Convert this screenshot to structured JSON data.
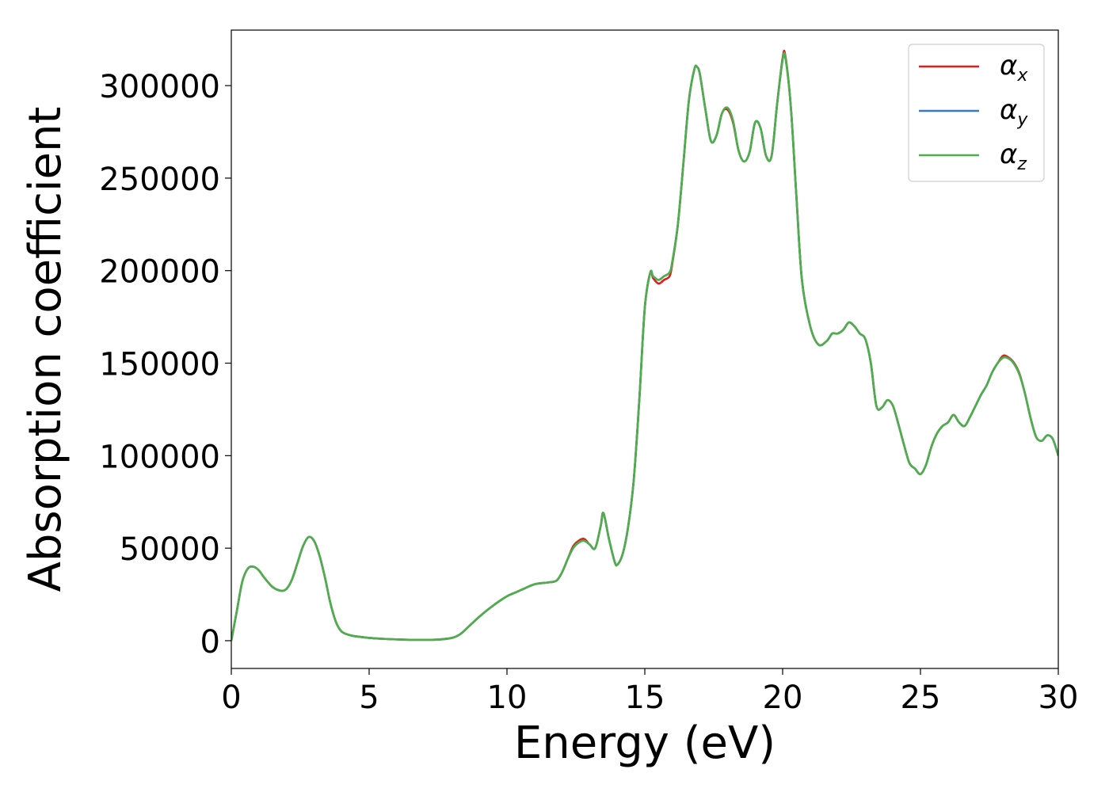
{
  "chart_data": {
    "type": "line",
    "title": "",
    "xlabel": "Energy (eV)",
    "ylabel": "Absorption coefficient",
    "xlim": [
      0,
      30
    ],
    "ylim": [
      -15000,
      330000
    ],
    "xticks": [
      0,
      5,
      10,
      15,
      20,
      25,
      30
    ],
    "yticks": [
      0,
      50000,
      100000,
      150000,
      200000,
      250000,
      300000
    ],
    "grid": false,
    "legend_position": "top-right",
    "legend": [
      {
        "symbol": "α",
        "subscript": "x",
        "color": "#e41a1c"
      },
      {
        "symbol": "α",
        "subscript": "y",
        "color": "#377eb8"
      },
      {
        "symbol": "α",
        "subscript": "z",
        "color": "#4daf4a"
      }
    ],
    "x": [
      0,
      0.2,
      0.4,
      0.6,
      0.8,
      1.0,
      1.2,
      1.5,
      1.8,
      2.0,
      2.2,
      2.4,
      2.6,
      2.8,
      3.0,
      3.2,
      3.4,
      3.6,
      3.8,
      4.0,
      4.3,
      4.6,
      5.0,
      5.5,
      6.0,
      6.5,
      7.0,
      7.5,
      8.0,
      8.3,
      8.6,
      9.0,
      9.5,
      10.0,
      10.3,
      10.6,
      11.0,
      11.5,
      11.8,
      12.0,
      12.2,
      12.4,
      12.6,
      12.8,
      13.0,
      13.2,
      13.4,
      13.5,
      13.7,
      13.9,
      14.0,
      14.2,
      14.4,
      14.6,
      14.8,
      15.0,
      15.2,
      15.3,
      15.5,
      15.7,
      15.9,
      16.0,
      16.2,
      16.4,
      16.6,
      16.8,
      16.9,
      17.0,
      17.2,
      17.4,
      17.6,
      17.8,
      18.0,
      18.2,
      18.4,
      18.6,
      18.8,
      19.0,
      19.2,
      19.4,
      19.6,
      19.8,
      20.0,
      20.1,
      20.3,
      20.5,
      20.7,
      21.0,
      21.3,
      21.6,
      21.8,
      22.0,
      22.2,
      22.4,
      22.6,
      22.8,
      23.0,
      23.2,
      23.4,
      23.6,
      23.8,
      24.0,
      24.2,
      24.4,
      24.6,
      24.8,
      25.0,
      25.2,
      25.4,
      25.6,
      25.8,
      26.0,
      26.2,
      26.4,
      26.6,
      26.8,
      27.0,
      27.2,
      27.4,
      27.6,
      27.8,
      28.0,
      28.2,
      28.4,
      28.6,
      28.8,
      29.0,
      29.2,
      29.4,
      29.6,
      29.8,
      30.0
    ],
    "series": [
      {
        "name": "α_x",
        "color": "#e41a1c",
        "values": [
          0,
          16000,
          32000,
          39000,
          40000,
          38000,
          34000,
          29000,
          27000,
          28000,
          33000,
          42000,
          51000,
          56000,
          54000,
          46000,
          34000,
          20000,
          10000,
          5000,
          3000,
          2200,
          1500,
          1000,
          700,
          500,
          500,
          600,
          1500,
          3500,
          7500,
          13000,
          19000,
          24000,
          26000,
          28000,
          30500,
          31500,
          32500,
          37000,
          44000,
          51000,
          54000,
          55000,
          52000,
          50000,
          62000,
          69000,
          55000,
          43000,
          41000,
          47000,
          62000,
          87000,
          130000,
          180000,
          199000,
          196000,
          193000,
          195000,
          197000,
          204000,
          225000,
          258000,
          292000,
          309000,
          310000,
          306000,
          287000,
          270000,
          273000,
          285000,
          287000,
          280000,
          265000,
          259000,
          264000,
          280000,
          277000,
          262000,
          262000,
          290000,
          315000,
          316000,
          288000,
          240000,
          195000,
          170000,
          160000,
          162000,
          166000,
          166000,
          168000,
          172000,
          170000,
          166000,
          163000,
          150000,
          127000,
          126000,
          130000,
          127000,
          117000,
          106000,
          96000,
          93000,
          90000,
          95000,
          105000,
          112000,
          116000,
          118000,
          122000,
          118000,
          116000,
          121000,
          127000,
          133000,
          138000,
          145000,
          150000,
          154000,
          153000,
          150000,
          144000,
          133000,
          120000,
          110000,
          108000,
          111000,
          109000,
          100000
        ]
      },
      {
        "name": "α_y",
        "color": "#377eb8",
        "values": [
          0,
          16000,
          32000,
          39000,
          40000,
          38000,
          34000,
          29000,
          27000,
          28000,
          33000,
          42000,
          51000,
          56000,
          54000,
          46000,
          34000,
          20000,
          10000,
          5000,
          3000,
          2200,
          1500,
          1000,
          700,
          500,
          500,
          600,
          1500,
          3500,
          7500,
          13000,
          19000,
          24000,
          26000,
          28000,
          30500,
          31500,
          32500,
          37000,
          44000,
          50000,
          53000,
          54000,
          52000,
          50000,
          62000,
          69000,
          55000,
          43000,
          41000,
          47000,
          62000,
          87000,
          130000,
          180000,
          199000,
          197000,
          195000,
          197000,
          199000,
          205000,
          225000,
          258000,
          292000,
          309000,
          310000,
          306000,
          287000,
          270000,
          273000,
          285000,
          288000,
          281000,
          265000,
          259000,
          264000,
          280000,
          277000,
          262000,
          262000,
          290000,
          314000,
          315000,
          288000,
          240000,
          195000,
          170000,
          160000,
          162000,
          166000,
          166000,
          168000,
          172000,
          170000,
          166000,
          163000,
          150000,
          127000,
          126000,
          130000,
          127000,
          117000,
          106000,
          96000,
          93000,
          90000,
          95000,
          105000,
          112000,
          116000,
          118000,
          122000,
          118000,
          116000,
          121000,
          127000,
          133000,
          138000,
          145000,
          150000,
          153000,
          152500,
          149500,
          143500,
          133000,
          120000,
          110000,
          108000,
          111000,
          109000,
          100000
        ]
      },
      {
        "name": "α_z",
        "color": "#4daf4a",
        "values": [
          0,
          16000,
          32000,
          39000,
          40000,
          38000,
          34000,
          29000,
          27000,
          28000,
          33000,
          42000,
          51000,
          56000,
          54000,
          46000,
          34000,
          20000,
          10000,
          5000,
          3000,
          2200,
          1500,
          1000,
          700,
          500,
          500,
          600,
          1500,
          3500,
          7500,
          13000,
          19000,
          24000,
          26000,
          28000,
          30500,
          31500,
          32500,
          37000,
          44000,
          50000,
          53000,
          54000,
          52000,
          50000,
          62000,
          69000,
          55000,
          43000,
          41000,
          47000,
          62000,
          87000,
          130000,
          180000,
          199000,
          197000,
          195000,
          197000,
          199000,
          205000,
          225000,
          258000,
          292000,
          309000,
          310000,
          306000,
          287000,
          270000,
          273000,
          285000,
          288000,
          281000,
          265000,
          259000,
          264000,
          280000,
          277000,
          262000,
          262000,
          290000,
          314000,
          315000,
          288000,
          240000,
          195000,
          170000,
          160000,
          162000,
          166000,
          166000,
          168000,
          172000,
          170000,
          166000,
          163000,
          150000,
          127000,
          126000,
          130000,
          127000,
          117000,
          106000,
          96000,
          93000,
          90000,
          95000,
          105000,
          112000,
          116000,
          118000,
          122000,
          118000,
          116000,
          121000,
          127000,
          133000,
          138000,
          145000,
          150000,
          153000,
          152500,
          149500,
          143500,
          133000,
          120000,
          110000,
          108000,
          111000,
          109000,
          100000
        ]
      }
    ]
  }
}
